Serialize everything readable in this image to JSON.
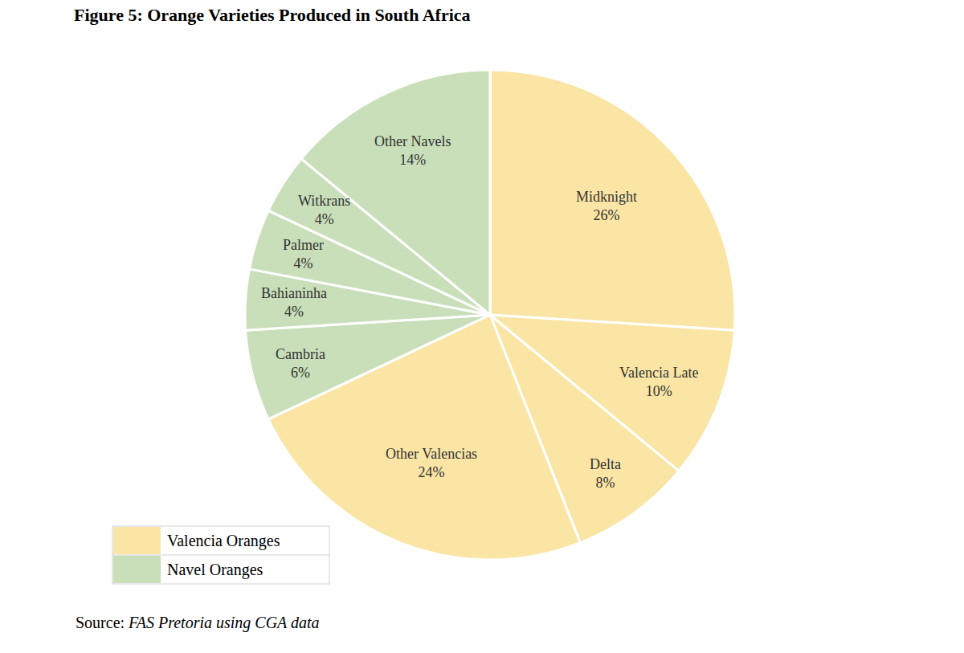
{
  "chart_data": {
    "type": "pie",
    "title": "Figure 5: Orange Varieties Produced in South Africa",
    "source": "Source: FAS Pretoria using CGA data",
    "categories": [
      "Midknight",
      "Valencia Late",
      "Delta",
      "Other Valencias",
      "Cambria",
      "Bahianinha",
      "Palmer",
      "Witkrans",
      "Other Navels"
    ],
    "values": [
      26,
      10,
      8,
      24,
      6,
      4,
      4,
      4,
      14
    ],
    "value_labels": [
      "26%",
      "10%",
      "8%",
      "24%",
      "6%",
      "4%",
      "4%",
      "4%",
      "14%"
    ],
    "series": [
      {
        "name": "Valencia Oranges",
        "color": "#fae5a5",
        "categories": [
          "Midknight",
          "Valencia Late",
          "Delta",
          "Other Valencias"
        ]
      },
      {
        "name": "Navel Oranges",
        "color": "#c9dfb9",
        "categories": [
          "Cambria",
          "Bahianinha",
          "Palmer",
          "Witkrans",
          "Other Navels"
        ]
      }
    ],
    "data_labels": true,
    "legend": "bottom left"
  }
}
